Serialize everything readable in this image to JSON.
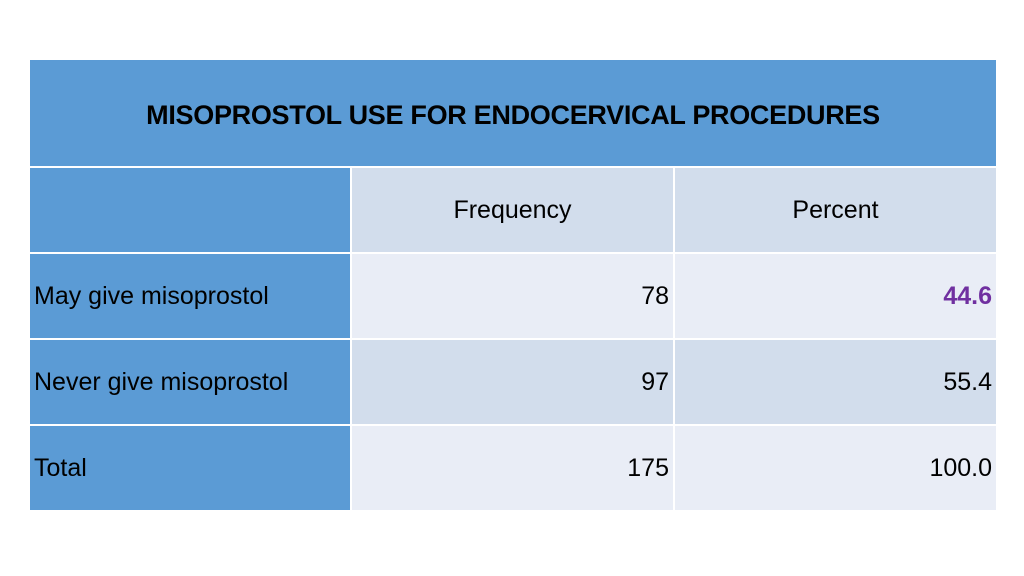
{
  "table": {
    "title": "MISOPROSTOL USE FOR ENDOCERVICAL PROCEDURES",
    "columns": [
      "",
      "Frequency",
      "Percent"
    ],
    "rows": [
      {
        "label": "May give misoprostol",
        "frequency": "78",
        "percent": "44.6"
      },
      {
        "label": "Never give misoprostol",
        "frequency": "97",
        "percent": "55.4"
      },
      {
        "label": "Total",
        "frequency": "175",
        "percent": "100.0"
      }
    ]
  },
  "colors": {
    "header_blue": "#5b9bd5",
    "light_band": "#e9edf6",
    "mid_band": "#d2ddec",
    "highlight_purple": "#7030a0"
  }
}
